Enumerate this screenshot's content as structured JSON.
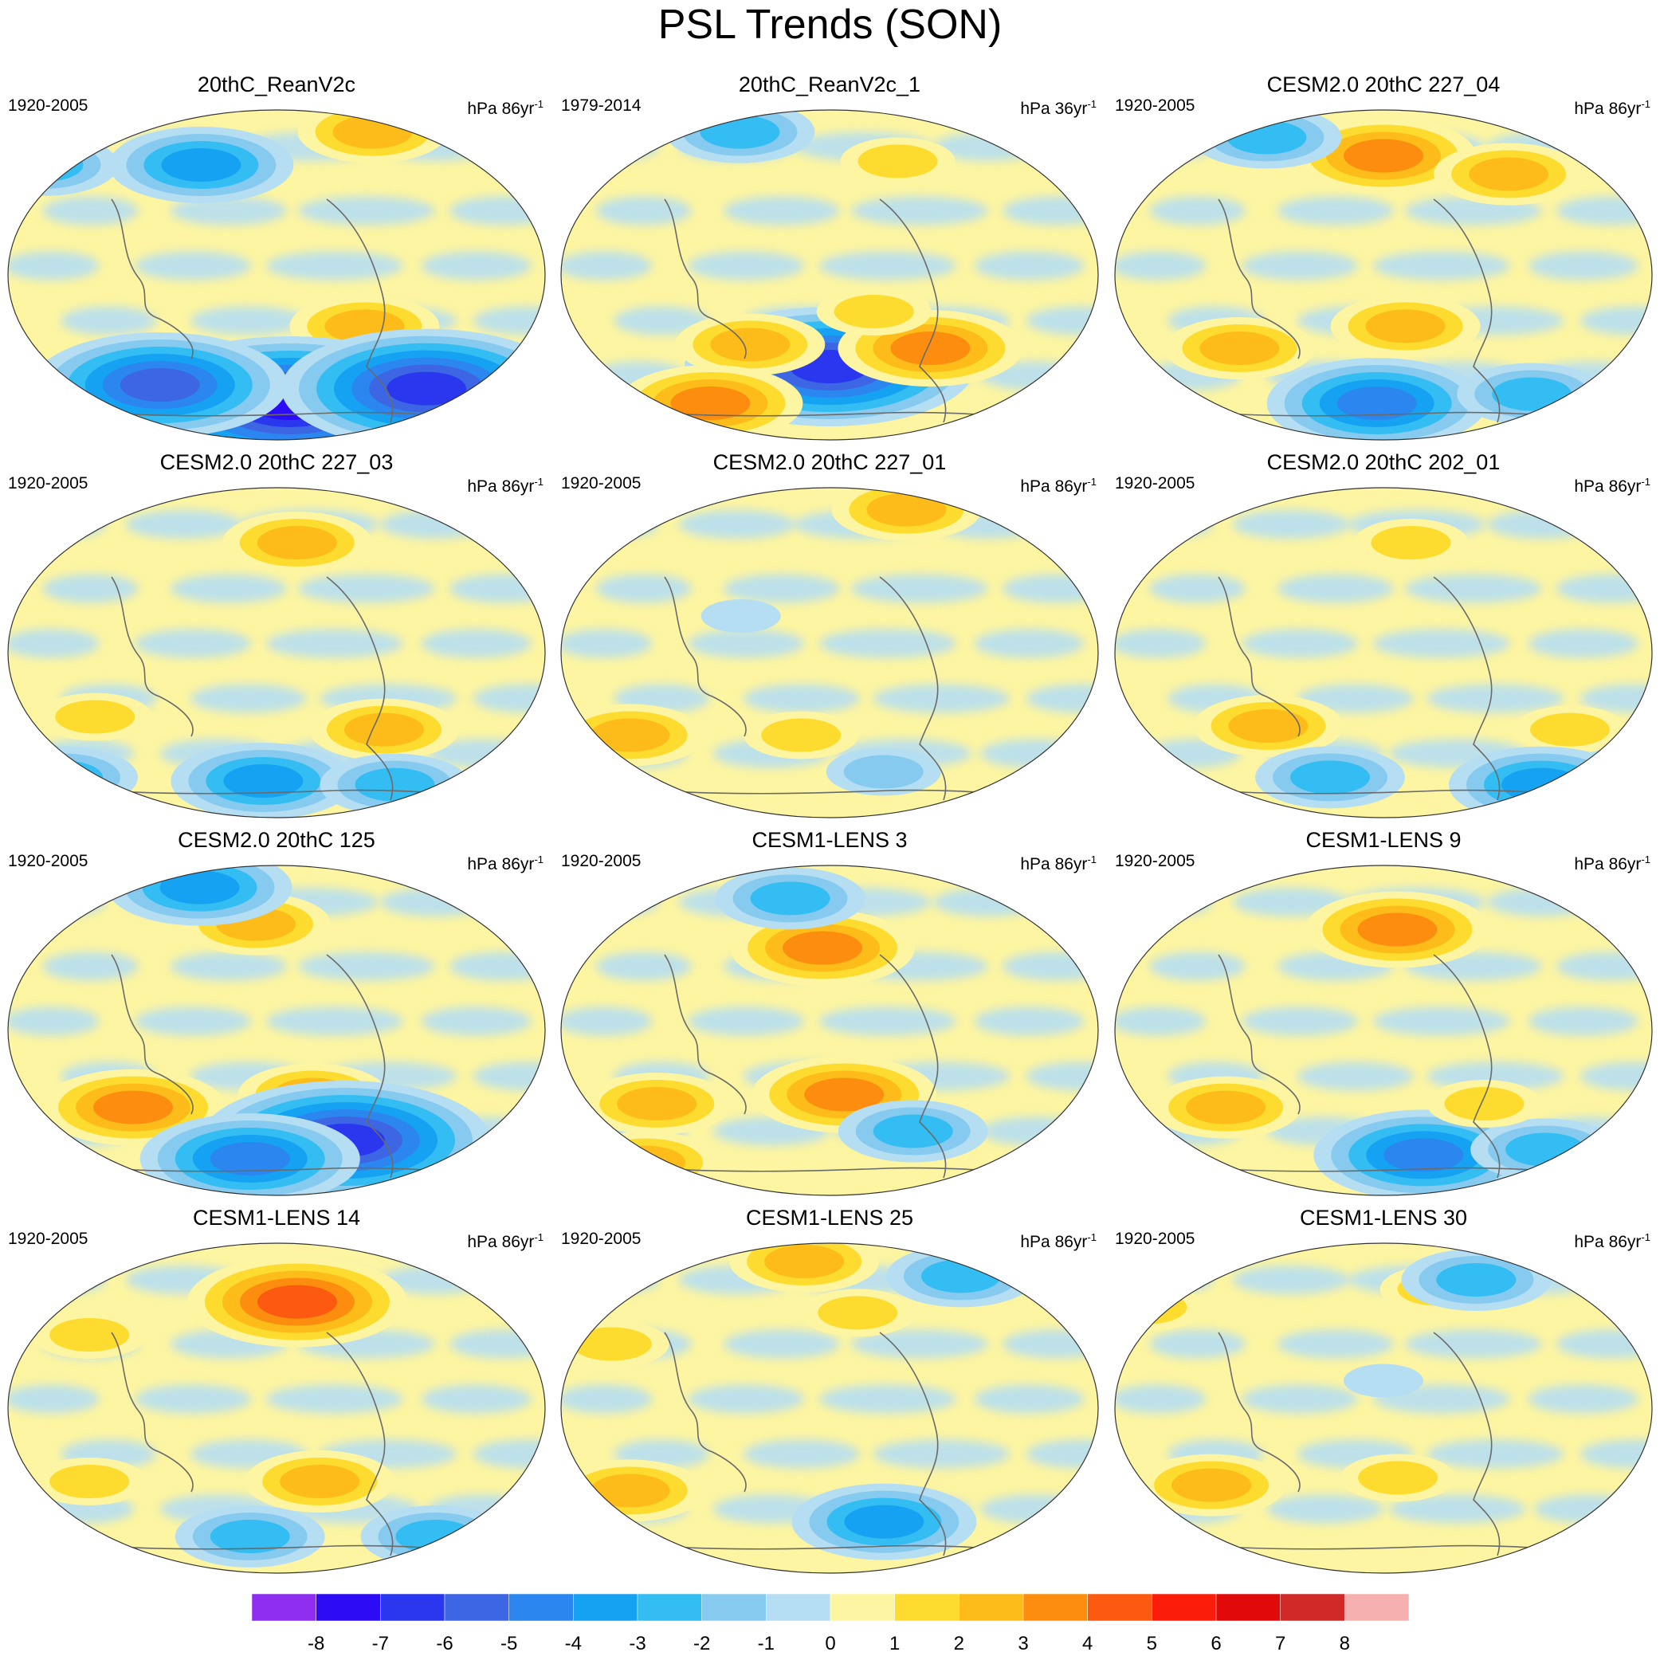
{
  "title": "PSL Trends (SON)",
  "units_base": "hPa",
  "chart_data": {
    "type": "heatmap",
    "projection": "Winkel tripel (Pacific-centered)",
    "colorbar": {
      "levels": [
        -8,
        -7,
        -6,
        -5,
        -4,
        -3,
        -2,
        -1,
        0,
        1,
        2,
        3,
        4,
        5,
        6,
        7,
        8
      ],
      "colors": [
        "#8e2cf0",
        "#2c0cf5",
        "#2a37ee",
        "#3c66e3",
        "#2b86f0",
        "#16a2f3",
        "#33bdf2",
        "#86cbef",
        "#b6def2",
        "#fdf5a1",
        "#fddc2f",
        "#fdbc19",
        "#fc8d0e",
        "#fc5a10",
        "#fc1c0a",
        "#e00a0a",
        "#d12828",
        "#f7b0b0"
      ]
    },
    "panels": [
      {
        "title": "20thC_ReanV2c",
        "period": "1920-2005",
        "rate": "86yr",
        "features": [
          {
            "lon": 75,
            "lat": 78,
            "value": 3
          },
          {
            "lon": -55,
            "lat": 60,
            "value": -4
          },
          {
            "lon": -170,
            "lat": 60,
            "value": -3
          },
          {
            "lon": 60,
            "lat": -28,
            "value": 3
          },
          {
            "lon": 10,
            "lat": -70,
            "value": -8
          },
          {
            "lon": 110,
            "lat": -62,
            "value": -7
          },
          {
            "lon": -85,
            "lat": -60,
            "value": -6
          }
        ]
      },
      {
        "title": "20thC_ReanV2c_1",
        "period": "1979-2014",
        "rate": "36yr",
        "features": [
          {
            "lon": 0,
            "lat": -50,
            "value": -7
          },
          {
            "lon": 70,
            "lat": -40,
            "value": 4
          },
          {
            "lon": -55,
            "lat": -38,
            "value": 3
          },
          {
            "lon": -90,
            "lat": -70,
            "value": 4
          },
          {
            "lon": 30,
            "lat": -20,
            "value": 2
          },
          {
            "lon": -70,
            "lat": 78,
            "value": -3
          },
          {
            "lon": 50,
            "lat": 62,
            "value": 2
          }
        ]
      },
      {
        "title": "CESM2.0 20thC 227_04",
        "period": "1920-2005",
        "rate": "86yr",
        "features": [
          {
            "lon": 0,
            "lat": 65,
            "value": 4
          },
          {
            "lon": 90,
            "lat": 55,
            "value": 3
          },
          {
            "lon": -100,
            "lat": -40,
            "value": 3
          },
          {
            "lon": 15,
            "lat": -28,
            "value": 3
          },
          {
            "lon": -5,
            "lat": -70,
            "value": -5
          },
          {
            "lon": 110,
            "lat": -65,
            "value": -3
          },
          {
            "lon": -90,
            "lat": 75,
            "value": -3
          }
        ]
      },
      {
        "title": "CESM2.0 20thC 227_03",
        "period": "1920-2005",
        "rate": "86yr",
        "features": [
          {
            "lon": 15,
            "lat": 60,
            "value": 3
          },
          {
            "lon": -125,
            "lat": -35,
            "value": 2
          },
          {
            "lon": 75,
            "lat": -42,
            "value": 3
          },
          {
            "lon": -10,
            "lat": -70,
            "value": -4
          },
          {
            "lon": 90,
            "lat": -72,
            "value": -3
          },
          {
            "lon": -160,
            "lat": -68,
            "value": -3
          }
        ]
      },
      {
        "title": "CESM2.0 20thC 227_01",
        "period": "1920-2005",
        "rate": "86yr",
        "features": [
          {
            "lon": 60,
            "lat": 78,
            "value": 3
          },
          {
            "lon": -140,
            "lat": -45,
            "value": 3
          },
          {
            "lon": -20,
            "lat": -45,
            "value": 2
          },
          {
            "lon": 40,
            "lat": -65,
            "value": -2
          },
          {
            "lon": -60,
            "lat": 20,
            "value": -1
          }
        ]
      },
      {
        "title": "CESM2.0 20thC 202_01",
        "period": "1920-2005",
        "rate": "86yr",
        "features": [
          {
            "lon": 20,
            "lat": 60,
            "value": 2
          },
          {
            "lon": -80,
            "lat": -40,
            "value": 3
          },
          {
            "lon": 130,
            "lat": -42,
            "value": 2
          },
          {
            "lon": -40,
            "lat": -68,
            "value": -3
          },
          {
            "lon": 120,
            "lat": -72,
            "value": -4
          }
        ]
      },
      {
        "title": "CESM2.0 20thC 125",
        "period": "1920-2005",
        "rate": "86yr",
        "features": [
          {
            "lon": -15,
            "lat": 58,
            "value": 3
          },
          {
            "lon": -100,
            "lat": -42,
            "value": 4
          },
          {
            "lon": 25,
            "lat": -35,
            "value": 3
          },
          {
            "lon": 50,
            "lat": -60,
            "value": -7
          },
          {
            "lon": -60,
            "lat": 78,
            "value": -4
          },
          {
            "lon": -20,
            "lat": -70,
            "value": -5
          }
        ]
      },
      {
        "title": "CESM1-LENS 3",
        "period": "1920-2005",
        "rate": "86yr",
        "features": [
          {
            "lon": -5,
            "lat": 45,
            "value": 4
          },
          {
            "lon": -120,
            "lat": -40,
            "value": 3
          },
          {
            "lon": 10,
            "lat": -35,
            "value": 4
          },
          {
            "lon": -140,
            "lat": -72,
            "value": 3
          },
          {
            "lon": 60,
            "lat": -55,
            "value": -3
          },
          {
            "lon": -30,
            "lat": 72,
            "value": -3
          }
        ]
      },
      {
        "title": "CESM1-LENS 9",
        "period": "1920-2005",
        "rate": "86yr",
        "features": [
          {
            "lon": 10,
            "lat": 55,
            "value": 4
          },
          {
            "lon": -110,
            "lat": -42,
            "value": 3
          },
          {
            "lon": 30,
            "lat": -68,
            "value": -5
          },
          {
            "lon": 120,
            "lat": -65,
            "value": -3
          },
          {
            "lon": 70,
            "lat": -40,
            "value": 2
          }
        ]
      },
      {
        "title": "CESM1-LENS 14",
        "period": "1920-2005",
        "rate": "86yr",
        "features": [
          {
            "lon": 15,
            "lat": 58,
            "value": 5
          },
          {
            "lon": -130,
            "lat": 40,
            "value": 2
          },
          {
            "lon": 30,
            "lat": -40,
            "value": 3
          },
          {
            "lon": -130,
            "lat": -40,
            "value": 2
          },
          {
            "lon": -20,
            "lat": -70,
            "value": -3
          },
          {
            "lon": 120,
            "lat": -70,
            "value": -3
          }
        ]
      },
      {
        "title": "CESM1-LENS 25",
        "period": "1920-2005",
        "rate": "86yr",
        "features": [
          {
            "lon": -20,
            "lat": 80,
            "value": 3
          },
          {
            "lon": -150,
            "lat": 35,
            "value": 2
          },
          {
            "lon": -140,
            "lat": -45,
            "value": 3
          },
          {
            "lon": 40,
            "lat": -62,
            "value": -4
          },
          {
            "lon": 100,
            "lat": 72,
            "value": -3
          },
          {
            "lon": 20,
            "lat": 52,
            "value": 2
          }
        ]
      },
      {
        "title": "CESM1-LENS 30",
        "period": "1920-2005",
        "rate": "86yr",
        "features": [
          {
            "lon": 40,
            "lat": 65,
            "value": 2
          },
          {
            "lon": 70,
            "lat": 70,
            "value": -3
          },
          {
            "lon": -170,
            "lat": 55,
            "value": 2
          },
          {
            "lon": -120,
            "lat": -42,
            "value": 3
          },
          {
            "lon": 10,
            "lat": -38,
            "value": 2
          },
          {
            "lon": 0,
            "lat": 15,
            "value": -1
          }
        ]
      }
    ]
  }
}
